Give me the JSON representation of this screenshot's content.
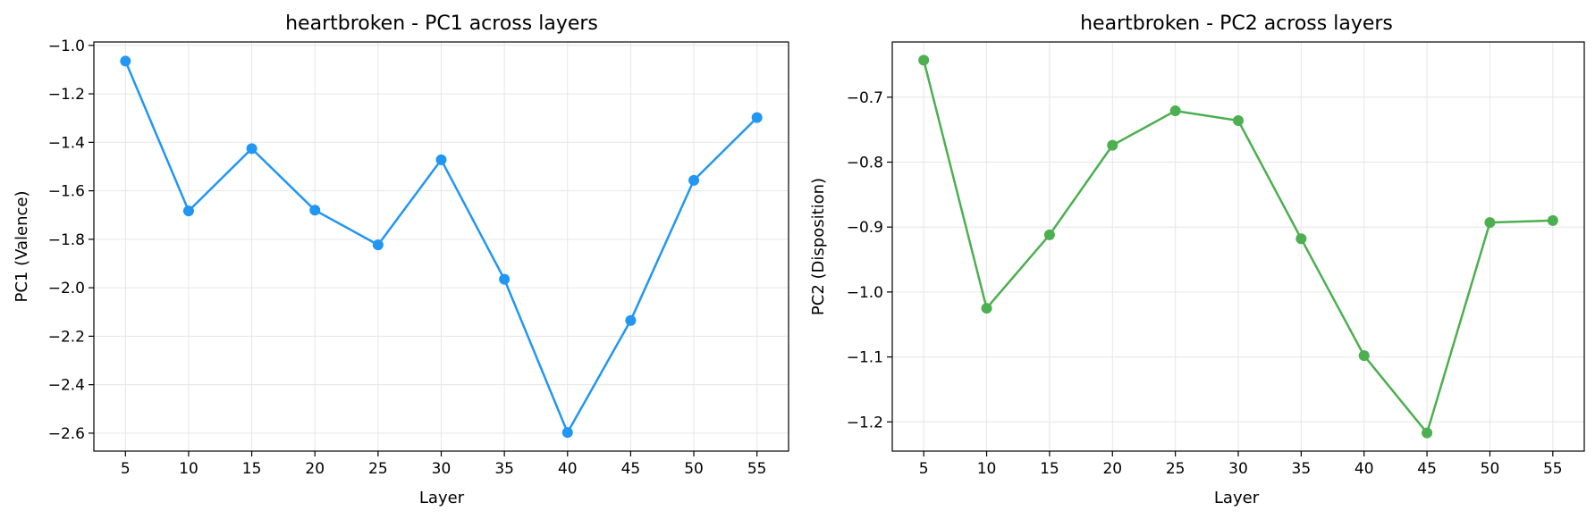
{
  "chart_data": [
    {
      "type": "line",
      "title": "heartbroken - PC1 across layers",
      "xlabel": "Layer",
      "ylabel": "PC1 (Valence)",
      "x": [
        5,
        10,
        15,
        20,
        25,
        30,
        35,
        40,
        45,
        50,
        55
      ],
      "xticks": [
        5,
        10,
        15,
        20,
        25,
        30,
        35,
        40,
        45,
        50,
        55
      ],
      "xlim": [
        2.5,
        57.5
      ],
      "yticks": [
        -1.0,
        -1.2,
        -1.4,
        -1.6,
        -1.8,
        -2.0,
        -2.2,
        -2.4,
        -2.6
      ],
      "ytick_labels": [
        "−1.0",
        "−1.2",
        "−1.4",
        "−1.6",
        "−1.8",
        "−2.0",
        "−2.2",
        "−2.4",
        "−2.6"
      ],
      "ylim": [
        -2.674,
        -0.986
      ],
      "grid": true,
      "series": [
        {
          "values": [
            -1.065,
            -1.683,
            -1.426,
            -1.68,
            -1.823,
            -1.472,
            -1.965,
            -2.597,
            -2.135,
            -1.557,
            -1.298
          ],
          "color": "#2196F3"
        }
      ]
    },
    {
      "type": "line",
      "title": "heartbroken - PC2 across layers",
      "xlabel": "Layer",
      "ylabel": "PC2 (Disposition)",
      "x": [
        5,
        10,
        15,
        20,
        25,
        30,
        35,
        40,
        45,
        50,
        55
      ],
      "xticks": [
        5,
        10,
        15,
        20,
        25,
        30,
        35,
        40,
        45,
        50,
        55
      ],
      "xlim": [
        2.5,
        57.5
      ],
      "yticks": [
        -0.7,
        -0.8,
        -0.9,
        -1.0,
        -1.1,
        -1.2
      ],
      "ytick_labels": [
        "−0.7",
        "−0.8",
        "−0.9",
        "−1.0",
        "−1.1",
        "−1.2"
      ],
      "ylim": [
        -1.245,
        -0.615
      ],
      "grid": true,
      "series": [
        {
          "values": [
            -0.643,
            -1.025,
            -0.912,
            -0.774,
            -0.721,
            -0.736,
            -0.918,
            -1.098,
            -1.217,
            -0.893,
            -0.89
          ],
          "color": "#4CAF50"
        }
      ]
    }
  ]
}
